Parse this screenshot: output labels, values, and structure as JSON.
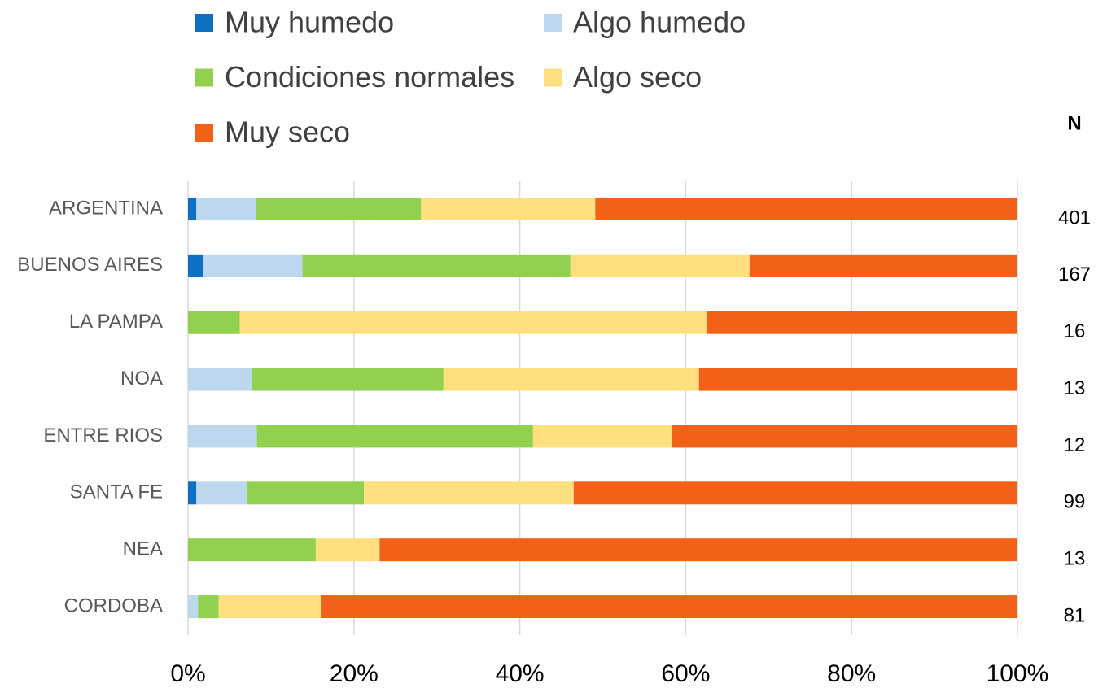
{
  "chart_data": {
    "type": "stacked_barh",
    "categories": [
      "ARGENTINA",
      "BUENOS AIRES",
      "LA PAMPA",
      "NOA",
      "ENTRE RIOS",
      "SANTA FE",
      "NEA",
      "CORDOBA"
    ],
    "series": [
      {
        "name": "Muy humedo",
        "color": "#0f6fc2",
        "values": [
          1,
          1.8,
          0,
          0,
          0,
          1.0,
          0,
          0
        ]
      },
      {
        "name": "Algo humedo",
        "color": "#bdd7ee",
        "values": [
          7.2,
          12.0,
          0,
          7.7,
          8.3,
          6.1,
          0,
          1.2
        ]
      },
      {
        "name": "Condiciones normales",
        "color": "#92d050",
        "values": [
          19.9,
          32.3,
          6.25,
          23.1,
          33.3,
          14.1,
          15.4,
          2.5
        ]
      },
      {
        "name": "Algo seco",
        "color": "#ffdf80",
        "values": [
          21,
          21.6,
          56.25,
          30.8,
          16.7,
          25.3,
          7.7,
          12.3
        ]
      },
      {
        "name": "Muy seco",
        "color": "#f26118",
        "values": [
          50.9,
          32.3,
          37.5,
          38.4,
          41.7,
          53.5,
          76.9,
          84.0
        ]
      }
    ],
    "n_label": "N",
    "n_values": [
      401,
      167,
      16,
      13,
      12,
      99,
      13,
      81
    ],
    "xlim": [
      0,
      100
    ],
    "xticks": [
      {
        "value": 0,
        "label": "0%"
      },
      {
        "value": 20,
        "label": "20%"
      },
      {
        "value": 40,
        "label": "40%"
      },
      {
        "value": 60,
        "label": "60%"
      },
      {
        "value": 80,
        "label": "80%"
      },
      {
        "value": 100,
        "label": "100%"
      }
    ],
    "grid": true
  }
}
